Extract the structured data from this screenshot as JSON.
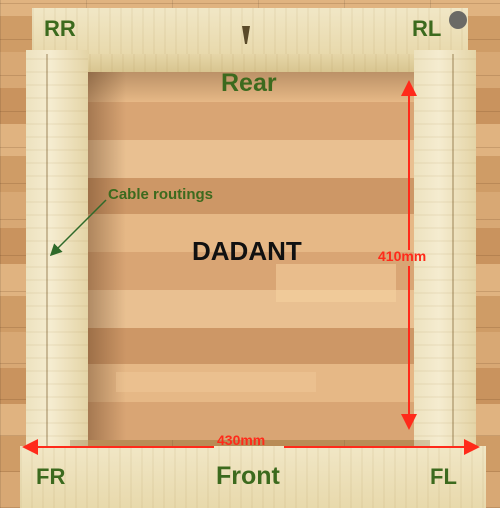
{
  "labels": {
    "rear_right": "RR",
    "rear_left": "RL",
    "rear": "Rear",
    "front": "Front",
    "front_right": "FR",
    "front_left": "FL",
    "model": "DADANT",
    "cable_routings": "Cable routings",
    "depth": "410mm",
    "width": "430mm"
  },
  "colors": {
    "label_green": "#3c6a1e",
    "measure_red": "#ff2a1a",
    "annotation_green": "#2f6a2a"
  }
}
